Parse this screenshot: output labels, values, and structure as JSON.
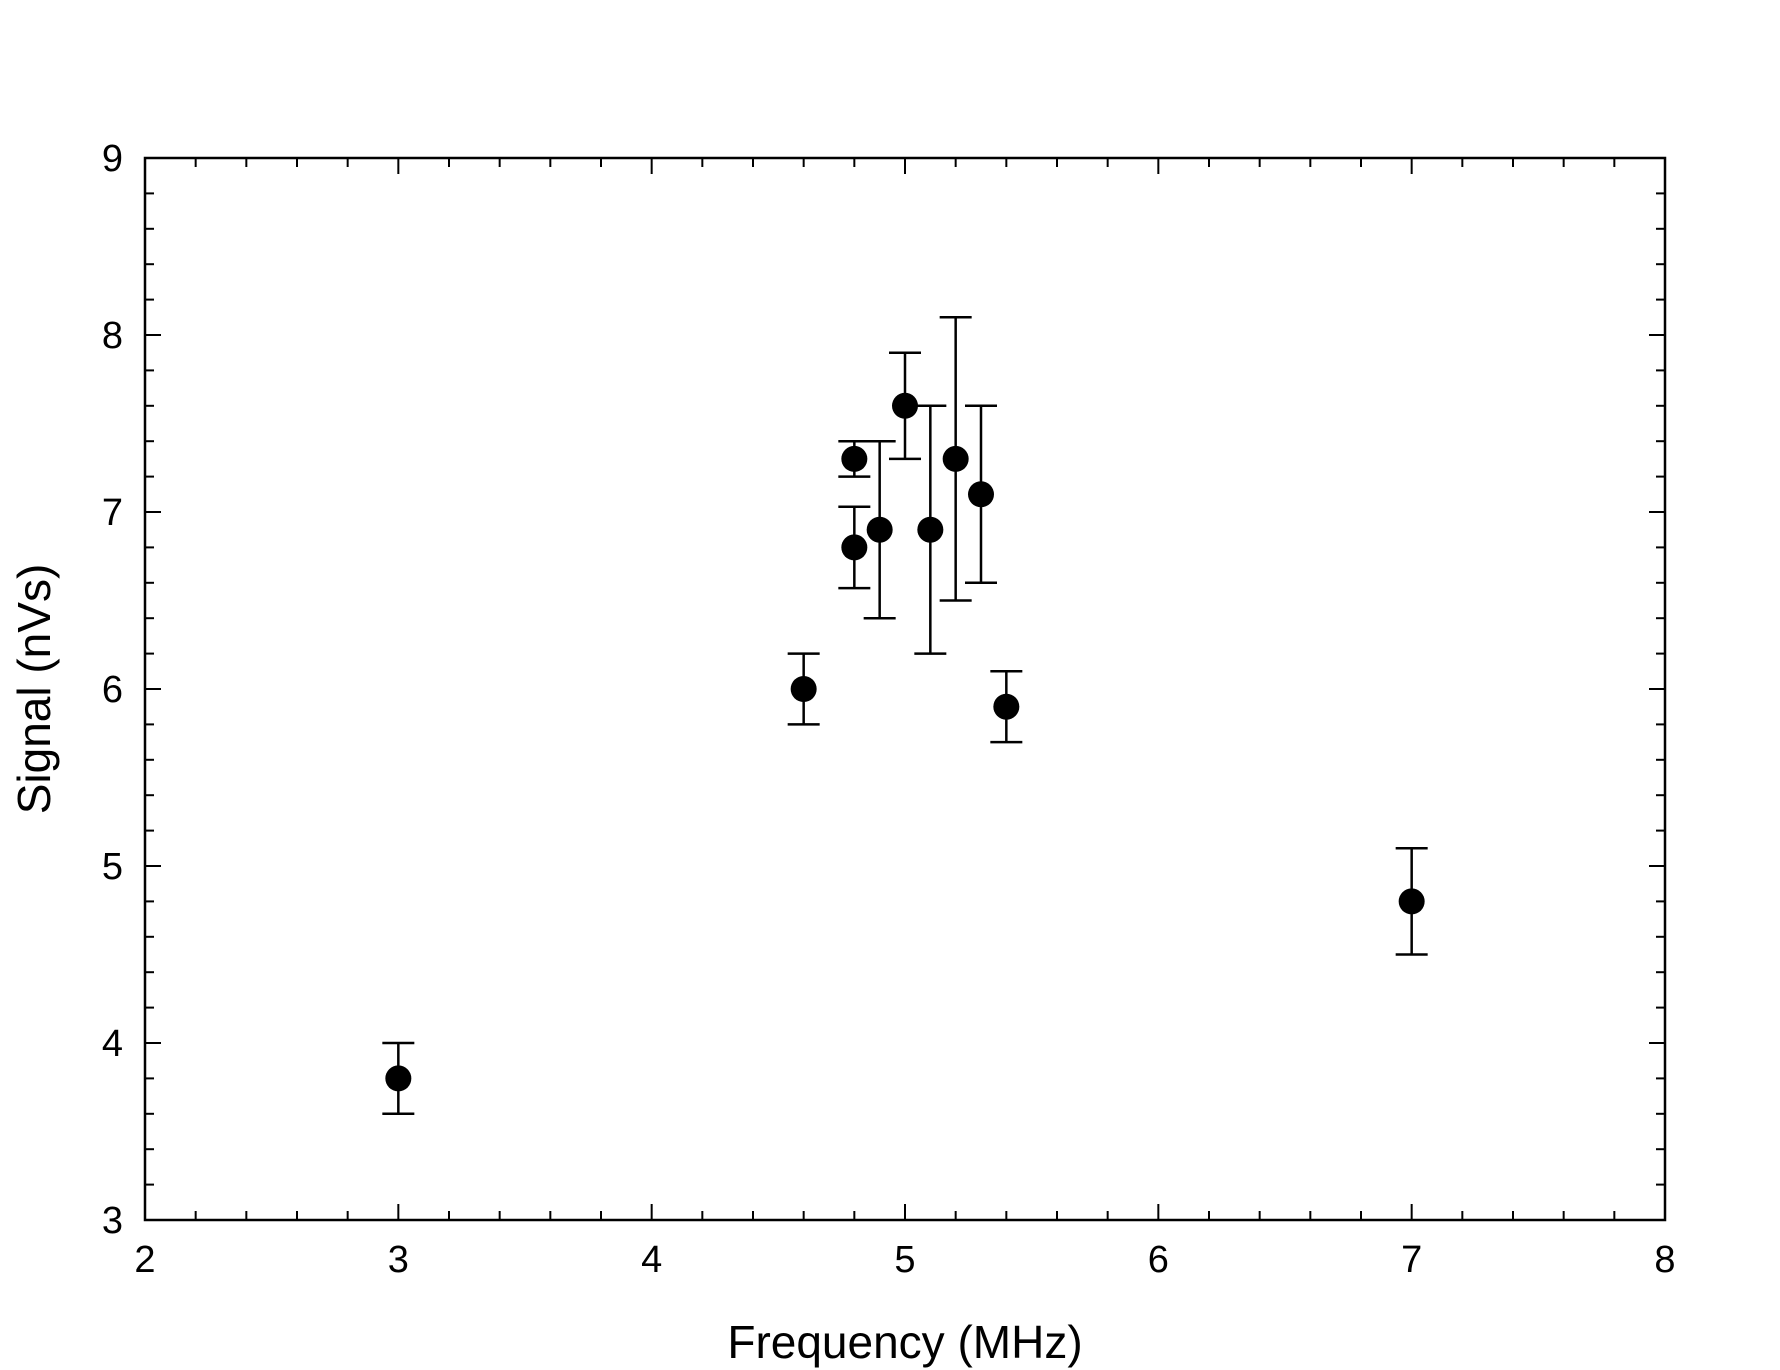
{
  "chart_data": {
    "type": "scatter",
    "title": "",
    "xlabel": "Frequency (MHz)",
    "ylabel": "Signal (nVs)",
    "xlim": [
      2,
      8
    ],
    "ylim": [
      3,
      9
    ],
    "x_ticks": [
      "2",
      "3",
      "4",
      "5",
      "6",
      "7",
      "8"
    ],
    "y_ticks": [
      "3",
      "4",
      "5",
      "6",
      "7",
      "8",
      "9"
    ],
    "grid": false,
    "legend": "none",
    "marker_color": "#000000",
    "series": [
      {
        "points": [
          {
            "x": 3.0,
            "y": 3.8,
            "err_low": 3.6,
            "err_high": 4.0
          },
          {
            "x": 4.6,
            "y": 6.0,
            "err_low": 5.8,
            "err_high": 6.2
          },
          {
            "x": 4.8,
            "y": 6.8,
            "err_low": 6.57,
            "err_high": 7.03
          },
          {
            "x": 4.8,
            "y": 7.3,
            "err_low": 7.2,
            "err_high": 7.4
          },
          {
            "x": 4.9,
            "y": 6.9,
            "err_low": 6.4,
            "err_high": 7.4
          },
          {
            "x": 5.0,
            "y": 7.6,
            "err_low": 7.3,
            "err_high": 7.9
          },
          {
            "x": 5.1,
            "y": 6.9,
            "err_low": 6.2,
            "err_high": 7.6
          },
          {
            "x": 5.2,
            "y": 7.3,
            "err_low": 6.5,
            "err_high": 8.1
          },
          {
            "x": 5.3,
            "y": 7.1,
            "err_low": 6.6,
            "err_high": 7.6
          },
          {
            "x": 5.4,
            "y": 5.9,
            "err_low": 5.7,
            "err_high": 6.1
          },
          {
            "x": 7.0,
            "y": 4.8,
            "err_low": 4.5,
            "err_high": 5.1
          }
        ]
      }
    ]
  }
}
